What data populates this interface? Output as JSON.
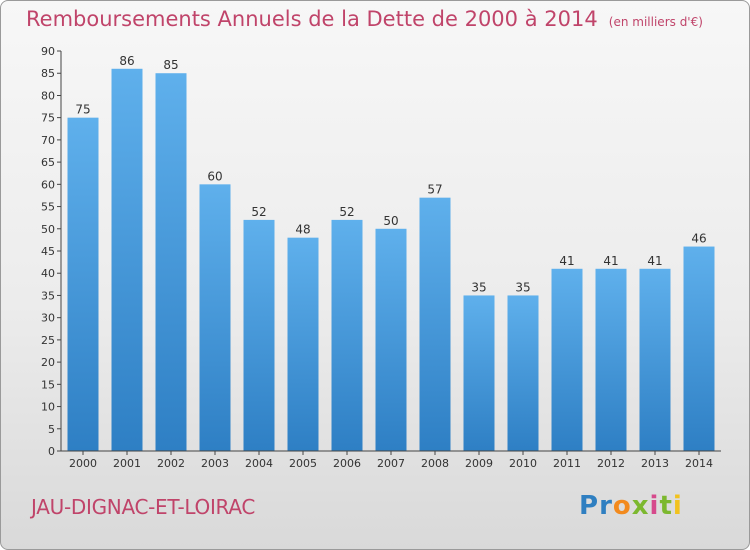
{
  "header": {
    "title": "Remboursements Annuels de la Dette de 2000 à 2014",
    "subtitle": "(en milliers d'€)"
  },
  "footer": {
    "commune": "JAU-DIGNAC-ET-LOIRAC",
    "logo": [
      "P",
      "r",
      "o",
      "x",
      "i",
      "t",
      "i"
    ],
    "logo_colors": [
      "#2f7fc1",
      "#2f7fc1",
      "#f28a1e",
      "#7cb82f",
      "#d64a8c",
      "#7cb82f",
      "#f2c21e"
    ]
  },
  "chart_data": {
    "type": "bar",
    "title": "Remboursements Annuels de la Dette de 2000 à 2014",
    "xlabel": "",
    "ylabel": "",
    "categories": [
      "2000",
      "2001",
      "2002",
      "2003",
      "2004",
      "2005",
      "2006",
      "2007",
      "2008",
      "2009",
      "2010",
      "2011",
      "2012",
      "2013",
      "2014"
    ],
    "values": [
      75,
      86,
      85,
      60,
      52,
      48,
      52,
      50,
      57,
      35,
      35,
      41,
      41,
      41,
      46
    ],
    "ylim": [
      0,
      90
    ],
    "yticks": [
      0,
      5,
      10,
      15,
      20,
      25,
      30,
      35,
      40,
      45,
      50,
      55,
      60,
      65,
      70,
      75,
      80,
      85,
      90
    ],
    "grid": false,
    "bar_color_top": "#5fb0ec",
    "bar_color_bottom": "#2e7fc4"
  }
}
